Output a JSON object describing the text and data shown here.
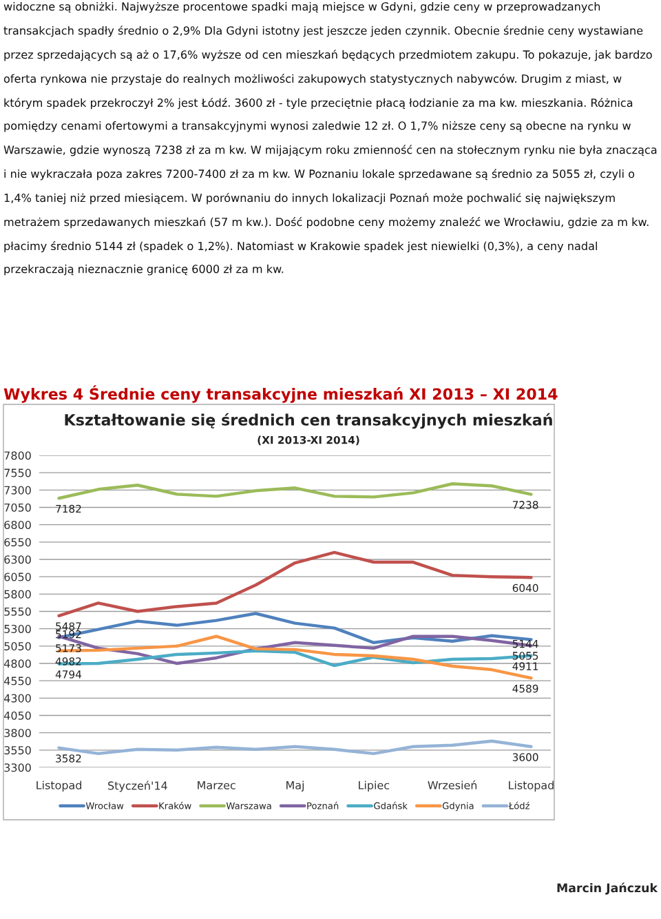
{
  "chart_data": {
    "type": "line",
    "title": "Kształtowanie się średnich cen transakcyjnych mieszkań",
    "subtitle": "(XI 2013-XI 2014)",
    "categories": [
      "Listopad",
      null,
      "Styczeń'14",
      null,
      "Marzec",
      null,
      "Maj",
      null,
      "Lipiec",
      null,
      "Wrzesień",
      null,
      "Listopad"
    ],
    "series": [
      {
        "name": "Wrocław",
        "color": "#4f81bd",
        "values": [
          5173,
          5290,
          5410,
          5350,
          5420,
          5520,
          5380,
          5310,
          5100,
          5170,
          5120,
          5200,
          5144
        ],
        "value_labels": [
          "5173",
          null,
          null,
          null,
          null,
          null,
          null,
          null,
          null,
          null,
          null,
          null,
          "5144"
        ]
      },
      {
        "name": "Kraków",
        "color": "#c0504d",
        "values": [
          5487,
          5670,
          5550,
          5620,
          5670,
          5930,
          6250,
          6400,
          6260,
          6260,
          6070,
          6050,
          6040
        ],
        "value_labels": [
          "5487",
          null,
          null,
          null,
          null,
          null,
          null,
          null,
          null,
          null,
          null,
          null,
          "6040"
        ]
      },
      {
        "name": "Warszawa",
        "color": "#9bbb59",
        "values": [
          7182,
          7310,
          7370,
          7240,
          7210,
          7290,
          7330,
          7210,
          7200,
          7260,
          7390,
          7360,
          7238
        ],
        "value_labels": [
          "7182",
          null,
          null,
          null,
          null,
          null,
          null,
          null,
          null,
          null,
          null,
          null,
          "7238"
        ]
      },
      {
        "name": "Poznań",
        "color": "#8064a2",
        "values": [
          5192,
          5020,
          4940,
          4800,
          4880,
          5010,
          5100,
          5060,
          5020,
          5190,
          5190,
          5130,
          5055
        ],
        "value_labels": [
          "5192",
          null,
          null,
          null,
          null,
          null,
          null,
          null,
          null,
          null,
          null,
          null,
          "5055"
        ]
      },
      {
        "name": "Gdańsk",
        "color": "#4bacc6",
        "values": [
          4794,
          4800,
          4860,
          4930,
          4950,
          4980,
          4960,
          4770,
          4890,
          4810,
          4860,
          4870,
          4911
        ],
        "value_labels": [
          "4794",
          null,
          null,
          null,
          null,
          null,
          null,
          null,
          null,
          null,
          null,
          null,
          "4911"
        ]
      },
      {
        "name": "Gdynia",
        "color": "#f79646",
        "values": [
          4982,
          4990,
          5020,
          5050,
          5190,
          5010,
          5000,
          4930,
          4910,
          4860,
          4760,
          4710,
          4589
        ],
        "value_labels": [
          "4982",
          null,
          null,
          null,
          null,
          null,
          null,
          null,
          null,
          null,
          null,
          null,
          "4589"
        ]
      },
      {
        "name": "Łódź",
        "color": "#95b3d7",
        "values": [
          3582,
          3500,
          3560,
          3550,
          3590,
          3560,
          3600,
          3560,
          3500,
          3600,
          3620,
          3680,
          3600
        ],
        "value_labels": [
          "3582",
          null,
          null,
          null,
          null,
          null,
          null,
          null,
          null,
          null,
          null,
          null,
          "3600"
        ]
      }
    ],
    "ylim": [
      3300,
      7800
    ],
    "yticks": [
      3300,
      3550,
      3800,
      4050,
      4300,
      4550,
      4800,
      5050,
      5300,
      5550,
      5800,
      6050,
      6300,
      6550,
      6800,
      7050,
      7300,
      7550,
      7800
    ],
    "grid": "y",
    "legend": "bottom",
    "marker": "none",
    "line_style": "solid",
    "annotations": [
      "widoczne są obniżki. Najwyższe procentowe spadki mają miejsce w Gdyni, gdzie ceny w przeprowadzanych transakcjach spadły średnio o 2,9% Dla Gdyni istotny jest jeszcze jeden czynnik. Obecnie średnie ceny wystawiane przez sprzedających są aż o 17,6% wyższe od cen mieszkań będących przedmiotem zakupu. To pokazuje, jak bardzo oferta rynkowa nie przystaje do realnych możliwości zakupowych statystycznych nabywców. Drugim z miast, w którym spadek przekroczył 2% jest Łódź. 3600 zł - tyle przeciętnie płacą łodzianie za ma kw. mieszkania. Różnica pomiędzy cenami ofertowymi a transakcyjnymi wynosi zaledwie 12 zł. O 1,7% niższe ceny są obecne na rynku w Warszawie, gdzie wynoszą 7238 zł za m kw. W mijającym roku zmienność cen na stołecznym rynku nie była znacząca i nie wykraczała poza zakres 7200-7400 zł za m kw. W Poznaniu lokale sprzedawane są średnio za 5055 zł, czyli o 1,4% taniej niż przed miesiącem. W porównaniu do innych lokalizacji Poznań może pochwalić się największym metrażem sprzedawanych mieszkań (57 m kw.). Dość podobne ceny możemy znaleźć we Wrocławiu, gdzie za m kw. płacimy średnio 5144 zł (spadek o 1,2%). Natomiast w Krakowie spadek jest niewielki (0,3%), a ceny nadal przekraczają nieznacznie granicę 6000 zł za m kw.",
      "Wykres 4 Średnie ceny transakcyjne mieszkań XI 2013 – XI 2014",
      "Marcin Jańczuk"
    ]
  }
}
